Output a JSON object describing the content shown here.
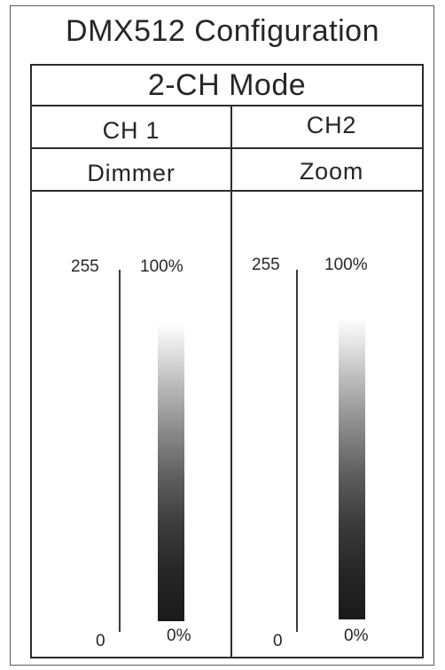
{
  "title": "DMX512 Configuration",
  "mode": "2-CH Mode",
  "channels": [
    {
      "channel": "CH 1",
      "function": "Dimmer",
      "dmx_max": "255",
      "dmx_min": "0",
      "pct_max": "100%",
      "pct_min": "0%"
    },
    {
      "channel": "CH2",
      "function": "Zoom",
      "dmx_max": "255",
      "dmx_min": "0",
      "pct_max": "100%",
      "pct_min": "0%"
    }
  ],
  "colors": {
    "border": "#2c2c2c",
    "text": "#262626",
    "bar_top": "#ffffff",
    "bar_bottom": "#1a1a1a"
  }
}
